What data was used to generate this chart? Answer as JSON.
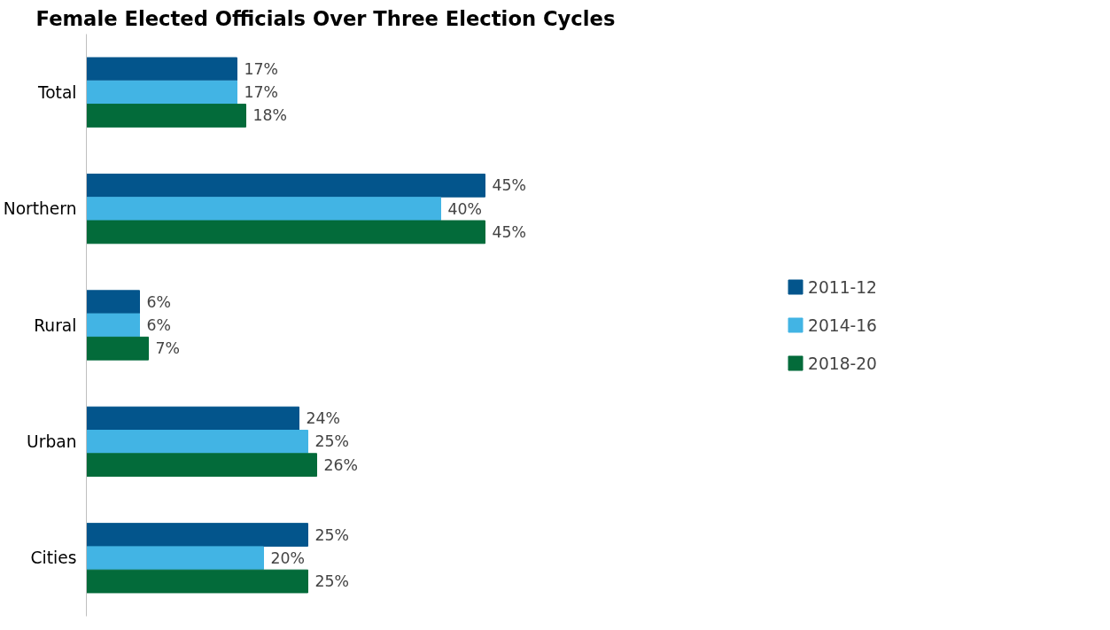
{
  "chart_data": {
    "type": "bar",
    "orientation": "horizontal",
    "title": "Female Elected Officials Over Three Election Cycles",
    "categories": [
      "Total",
      "Northern",
      "Rural",
      "Urban",
      "Cities"
    ],
    "series": [
      {
        "name": "2011-12",
        "color": "#03558c",
        "values": [
          17,
          45,
          6,
          24,
          25
        ],
        "value_labels": [
          "17%",
          "45%",
          "6%",
          "24%",
          "25%"
        ]
      },
      {
        "name": "2014-16",
        "color": "#42b4e4",
        "values": [
          17,
          40,
          6,
          25,
          20
        ],
        "value_labels": [
          "17%",
          "40%",
          "6%",
          "25%",
          "20%"
        ]
      },
      {
        "name": "2018-20",
        "color": "#036b3a",
        "values": [
          18,
          45,
          7,
          26,
          25
        ],
        "value_labels": [
          "18%",
          "45%",
          "7%",
          "26%",
          "25%"
        ]
      }
    ],
    "legend": "right",
    "grid": false
  }
}
